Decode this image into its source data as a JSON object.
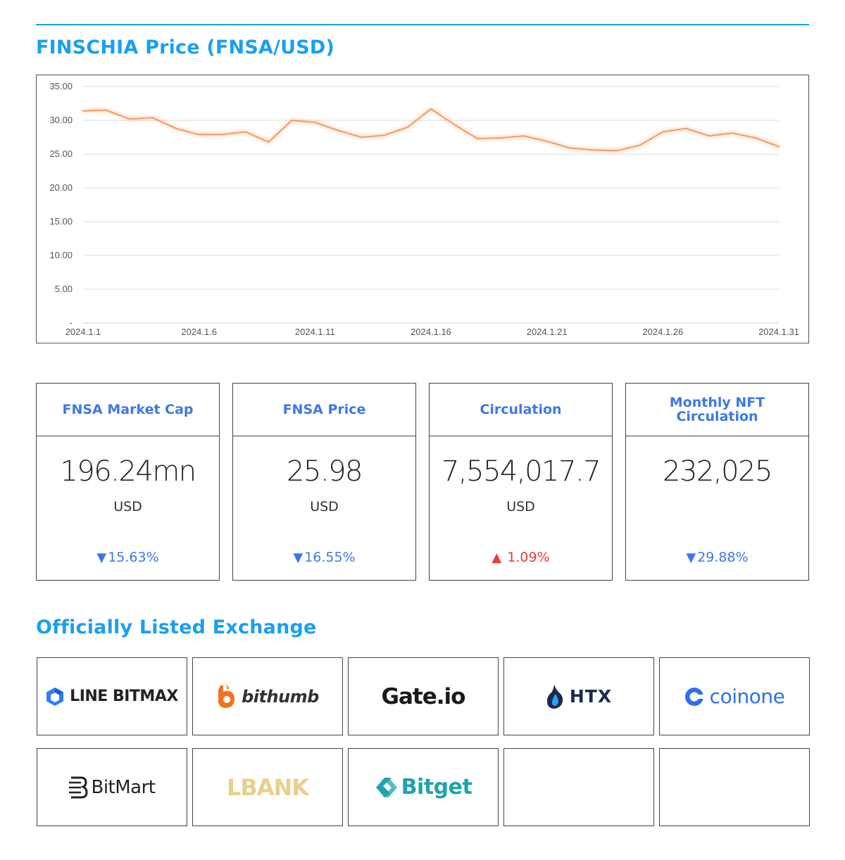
{
  "header": {
    "title": "FINSCHIA Price (FNSA/USD)"
  },
  "chart_data": {
    "type": "line",
    "title": "",
    "xlabel": "",
    "ylabel": "",
    "x_tick_labels": [
      "2024.1.1",
      "2024.1.6",
      "2024.1.11",
      "2024.1.16",
      "2024.1.21",
      "2024.1.26",
      "2024.1.31"
    ],
    "y_tick_labels": [
      "-",
      "5.00",
      "10.00",
      "15.00",
      "20.00",
      "25.00",
      "30.00",
      "35.00"
    ],
    "ylim": [
      0,
      35
    ],
    "grid": true,
    "series_color": "#f6975c",
    "series": [
      {
        "x": [
          "2024.1.1",
          "2024.1.2",
          "2024.1.3",
          "2024.1.4",
          "2024.1.5",
          "2024.1.6",
          "2024.1.7",
          "2024.1.8",
          "2024.1.9",
          "2024.1.10",
          "2024.1.11",
          "2024.1.12",
          "2024.1.13",
          "2024.1.14",
          "2024.1.15",
          "2024.1.16",
          "2024.1.17",
          "2024.1.18",
          "2024.1.19",
          "2024.1.20",
          "2024.1.21",
          "2024.1.22",
          "2024.1.23",
          "2024.1.24",
          "2024.1.25",
          "2024.1.26",
          "2024.1.27",
          "2024.1.28",
          "2024.1.29",
          "2024.1.30",
          "2024.1.31"
        ],
        "values": [
          31.4,
          31.5,
          30.2,
          30.4,
          28.8,
          27.9,
          27.9,
          28.3,
          26.8,
          30.0,
          29.7,
          28.5,
          27.5,
          27.8,
          29.0,
          31.7,
          29.4,
          27.3,
          27.4,
          27.7,
          26.9,
          25.9,
          25.6,
          25.5,
          26.3,
          28.3,
          28.8,
          27.7,
          28.1,
          27.4,
          26.1
        ]
      }
    ]
  },
  "stats": [
    {
      "label": "FNSA Market Cap",
      "value": "196.24mn",
      "unit": "USD",
      "change": "15.63%",
      "direction": "down",
      "arrow": "▼"
    },
    {
      "label": "FNSA Price",
      "value": "25.98",
      "unit": "USD",
      "change": "16.55%",
      "direction": "down",
      "arrow": "▼"
    },
    {
      "label": "Circulation",
      "value": "7,554,017.7",
      "unit": "USD",
      "change": "1.09%",
      "direction": "up",
      "arrow": "▲"
    },
    {
      "label": "Monthly NFT Circulation",
      "value": "232,025",
      "unit": "",
      "change": "29.88%",
      "direction": "down",
      "arrow": "▼"
    }
  ],
  "exchanges": {
    "title": "Officially Listed Exchange",
    "items": [
      {
        "name": "LINE BITMAX",
        "icon": "line-bitmax-cube-icon",
        "color": "#222222"
      },
      {
        "name": "bithumb",
        "icon": "bithumb-b-icon",
        "color": "#f37321"
      },
      {
        "name": "Gate.io",
        "icon": "",
        "color": "#1a1a1a"
      },
      {
        "name": "HTX",
        "icon": "htx-flame-icon",
        "color": "#1c2b46"
      },
      {
        "name": "coinone",
        "icon": "coinone-c-icon",
        "color": "#2f6df6"
      },
      {
        "name": "BitMart",
        "icon": "bitmart-icon",
        "color": "#222222"
      },
      {
        "name": "LBANK",
        "icon": "",
        "color": "#e8cf8c"
      },
      {
        "name": "Bitget",
        "icon": "bitget-arrows-icon",
        "color": "#1fa3ac"
      }
    ]
  }
}
